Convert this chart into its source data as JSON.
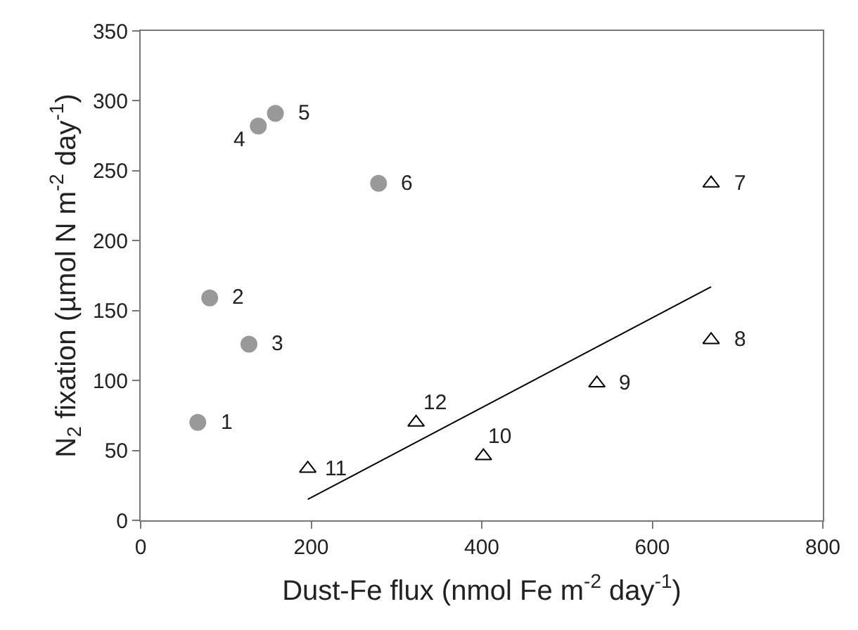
{
  "chart_data": {
    "type": "scatter",
    "xlabel": "Dust-Fe flux (nmol Fe m$^{-2}$ day$^{-1}$)",
    "ylabel": "N$_{2}$ fixation (µmol N m$^{-2}$ day$^{-1}$)",
    "xlim": [
      0,
      800
    ],
    "xticks": [
      0,
      200,
      400,
      600,
      800
    ],
    "ylim": [
      0,
      350
    ],
    "yticks": [
      0,
      50,
      100,
      150,
      200,
      250,
      300,
      350
    ],
    "series": [
      {
        "marker": "circle",
        "color": "#999999",
        "x": [
          67,
          81,
          127,
          138,
          158,
          279
        ],
        "values": [
          70,
          159,
          126,
          282,
          291,
          241
        ]
      },
      {
        "marker": "triangle",
        "color": "#000000",
        "x": [
          669,
          669,
          535,
          402,
          196,
          323
        ],
        "values": [
          241,
          129,
          98,
          46,
          37,
          70
        ]
      },
      {
        "type": "line",
        "marker": "none",
        "color": "#000000",
        "x": [
          196,
          669
        ],
        "values": [
          15,
          167
        ]
      }
    ],
    "annotations": [
      {
        "text": "1",
        "x": 67,
        "y": 70
      },
      {
        "text": "2",
        "x": 81,
        "y": 159
      },
      {
        "text": "3",
        "x": 127,
        "y": 126
      },
      {
        "text": "4",
        "x": 138,
        "y": 282
      },
      {
        "text": "5",
        "x": 158,
        "y": 291
      },
      {
        "text": "6",
        "x": 279,
        "y": 241
      },
      {
        "text": "7",
        "x": 669,
        "y": 241
      },
      {
        "text": "8",
        "x": 669,
        "y": 129
      },
      {
        "text": "9",
        "x": 535,
        "y": 98
      },
      {
        "text": "10",
        "x": 402,
        "y": 46
      },
      {
        "text": "11",
        "x": 196,
        "y": 37
      },
      {
        "text": "12",
        "x": 323,
        "y": 70
      }
    ]
  }
}
